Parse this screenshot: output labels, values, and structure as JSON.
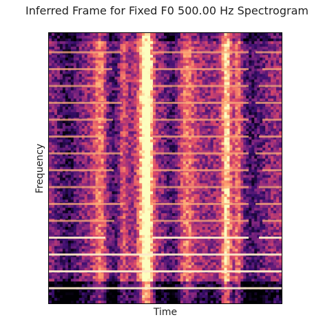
{
  "chart_data": {
    "type": "heatmap",
    "title": "Inferred Frame for Fixed F0 500.00 Hz Spectrogram",
    "xlabel": "Time",
    "ylabel": "Frequency",
    "colormap": "magma",
    "colors": [
      "#000004",
      "#3b0f70",
      "#8c2981",
      "#de4968",
      "#fe9f6d",
      "#fcfdbf"
    ]
  }
}
